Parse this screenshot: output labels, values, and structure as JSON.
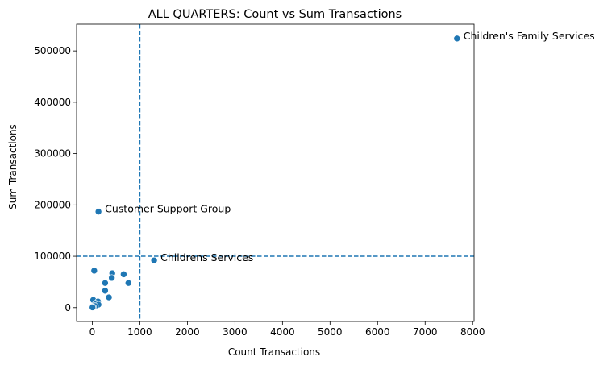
{
  "chart_data": {
    "type": "scatter",
    "title": "ALL QUARTERS: Count vs Sum Transactions",
    "xlabel": "Count Transactions",
    "ylabel": "Sum Transactions",
    "xlim": [
      -330,
      8030
    ],
    "ylim": [
      -27000,
      552000
    ],
    "xticks": [
      0,
      1000,
      2000,
      3000,
      4000,
      5000,
      6000,
      7000,
      8000
    ],
    "yticks": [
      0,
      100000,
      200000,
      300000,
      400000,
      500000
    ],
    "xtick_labels": [
      "0",
      "1000",
      "2000",
      "3000",
      "4000",
      "5000",
      "6000",
      "7000",
      "8000"
    ],
    "ytick_labels": [
      "0",
      "100000",
      "200000",
      "300000",
      "400000",
      "500000"
    ],
    "grid": false,
    "point_color": "#1f77b4",
    "reference_lines": {
      "vertical_x": 1000,
      "horizontal_y": 100000,
      "style": "dashed",
      "color": "#1f77b4"
    },
    "points": [
      {
        "x": 7670,
        "y": 524000
      },
      {
        "x": 130,
        "y": 187000
      },
      {
        "x": 1300,
        "y": 92000
      },
      {
        "x": 40,
        "y": 72000
      },
      {
        "x": 420,
        "y": 67000
      },
      {
        "x": 660,
        "y": 65000
      },
      {
        "x": 410,
        "y": 58000
      },
      {
        "x": 270,
        "y": 48000
      },
      {
        "x": 760,
        "y": 48000
      },
      {
        "x": 270,
        "y": 33000
      },
      {
        "x": 350,
        "y": 20000
      },
      {
        "x": 20,
        "y": 15000
      },
      {
        "x": 120,
        "y": 12000
      },
      {
        "x": 70,
        "y": 8000
      },
      {
        "x": 130,
        "y": 6000
      },
      {
        "x": 40,
        "y": 4000
      },
      {
        "x": 10,
        "y": 2000
      },
      {
        "x": 60,
        "y": 3000
      },
      {
        "x": 20,
        "y": 1000
      },
      {
        "x": 5,
        "y": 500
      }
    ],
    "annotations": [
      {
        "text": "Children's Family Services",
        "x": 7670,
        "y": 524000
      },
      {
        "text": "Customer Support Group",
        "x": 130,
        "y": 187000
      },
      {
        "text": "Childrens Services",
        "x": 1300,
        "y": 92000
      }
    ]
  }
}
